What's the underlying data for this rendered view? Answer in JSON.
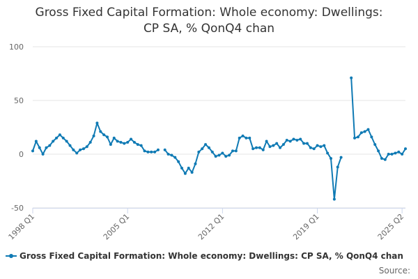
{
  "chart_data": {
    "type": "line",
    "title_line1": "Gross Fixed Capital Formation: Whole economy: Dwellings:",
    "title_line2": "CP SA, % QonQ4 chan",
    "xlabel": "",
    "ylabel": "",
    "ylim": [
      -50,
      100
    ],
    "yticks": [
      "100",
      "50",
      "0",
      "-50"
    ],
    "xticks": [
      "1998 Q1",
      "2005 Q1",
      "2012 Q1",
      "2019 Q1",
      "2025 Q2"
    ],
    "grid": true,
    "legend_position": "bottom",
    "series_color": "#0f7ab4",
    "series": [
      {
        "name": "Gross Fixed Capital Formation: Whole economy: Dwellings: CP SA, % QonQ4 chan",
        "x_start": "1998 Q1",
        "values": [
          3,
          12,
          6,
          0,
          6,
          8,
          12,
          15,
          18,
          15,
          12,
          8,
          4,
          1,
          4,
          5,
          7,
          11,
          17,
          29,
          21,
          18,
          16,
          9,
          15,
          12,
          11,
          10,
          11,
          14,
          11,
          9,
          8,
          3,
          2,
          2,
          2,
          4,
          null,
          4,
          0,
          -1,
          -3,
          -7,
          -13,
          -18,
          -13,
          -17,
          -9,
          2,
          5,
          9,
          6,
          2,
          -2,
          -1,
          1,
          -2,
          -1,
          3,
          3,
          15,
          17,
          15,
          15,
          5,
          6,
          6,
          4,
          12,
          7,
          8,
          10,
          6,
          9,
          13,
          12,
          14,
          13,
          14,
          10,
          10,
          6,
          5,
          8,
          7,
          8,
          1,
          -4,
          -42,
          -12,
          -3,
          null,
          null,
          71,
          15,
          16,
          20,
          21,
          23,
          16,
          9,
          3,
          -4,
          -5,
          0,
          0,
          1,
          2,
          0,
          5
        ]
      }
    ]
  },
  "legend": {
    "label": "Gross Fixed Capital Formation: Whole economy: Dwellings: CP SA, % QonQ4 chan"
  },
  "source_label": "Source:"
}
